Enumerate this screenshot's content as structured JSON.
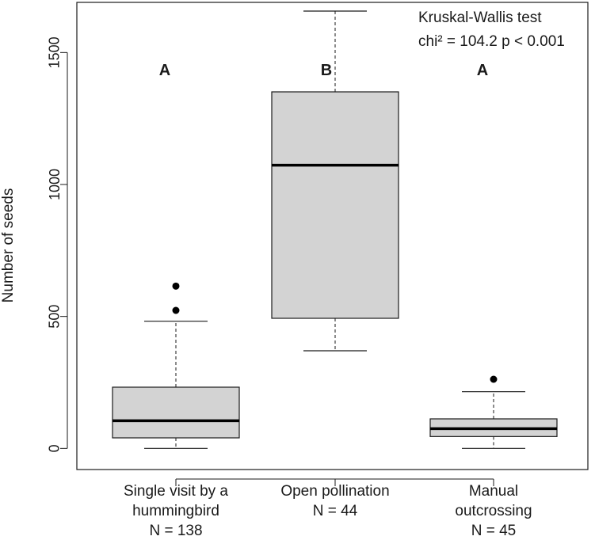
{
  "chart_data": {
    "type": "boxplot",
    "ylabel": "Number of seeds",
    "ylim": [
      -80,
      1690
    ],
    "yticks": [
      0,
      500,
      1000,
      1500
    ],
    "annotation": {
      "line1": "Kruskal-Wallis test",
      "line2": "chi² = 104.2  p < 0.001"
    },
    "groups": [
      {
        "label_lines": [
          "Single visit by a",
          "hummingbird",
          "N = 138"
        ],
        "letter": "A",
        "whisker_low": 0,
        "q1": 40,
        "median": 105,
        "q3": 232,
        "whisker_high": 482,
        "outliers": [
          523,
          615
        ]
      },
      {
        "label_lines": [
          "Open pollination",
          "N = 44"
        ],
        "letter": "B",
        "whisker_low": 370,
        "q1": 493,
        "median": 1073,
        "q3": 1351,
        "whisker_high": 1657,
        "outliers": []
      },
      {
        "label_lines": [
          "Manual",
          "outcrossing",
          "N = 45"
        ],
        "letter": "A",
        "whisker_low": 0,
        "q1": 45,
        "median": 75,
        "q3": 112,
        "whisker_high": 215,
        "outliers": [
          262
        ]
      }
    ],
    "colors": {
      "box_fill": "#d3d3d3",
      "stroke": "#1a1a1a"
    }
  }
}
